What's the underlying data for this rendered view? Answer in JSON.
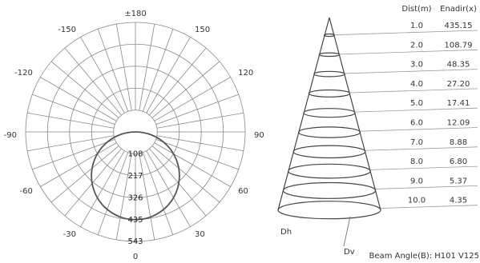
{
  "chart_data": [
    {
      "type": "polar",
      "angle_labels": [
        {
          "angle": 180,
          "text": "±180"
        },
        {
          "angle": 150,
          "text": "150"
        },
        {
          "angle": -150,
          "text": "-150"
        },
        {
          "angle": 120,
          "text": "120"
        },
        {
          "angle": -120,
          "text": "-120"
        },
        {
          "angle": 90,
          "text": "90"
        },
        {
          "angle": -90,
          "text": "-90"
        },
        {
          "angle": 60,
          "text": "60"
        },
        {
          "angle": -60,
          "text": "-60"
        },
        {
          "angle": 30,
          "text": "30"
        },
        {
          "angle": -30,
          "text": "-30"
        },
        {
          "angle": 0,
          "text": "0"
        }
      ],
      "radial_labels": [
        "108",
        "217",
        "326",
        "435",
        "543"
      ],
      "radial_values": [
        108,
        217,
        326,
        435,
        543
      ],
      "radial_max": 543,
      "angular_step_deg": 10,
      "curve_peak": 435,
      "curve_type": "circle-through-center"
    },
    {
      "type": "table",
      "columns": [
        "Dist(m)",
        "Enadir(x)"
      ],
      "rows": [
        [
          "1.0",
          "435.15"
        ],
        [
          "2.0",
          "108.79"
        ],
        [
          "3.0",
          "48.35"
        ],
        [
          "4.0",
          "27.20"
        ],
        [
          "5.0",
          "17.41"
        ],
        [
          "6.0",
          "12.09"
        ],
        [
          "7.0",
          "8.88"
        ],
        [
          "8.0",
          "6.80"
        ],
        [
          "9.0",
          "5.37"
        ],
        [
          "10.0",
          "4.35"
        ]
      ],
      "dh_label": "Dh",
      "dv_label": "Dv",
      "beam_label": "Beam Angle(B): H101  V125"
    }
  ]
}
